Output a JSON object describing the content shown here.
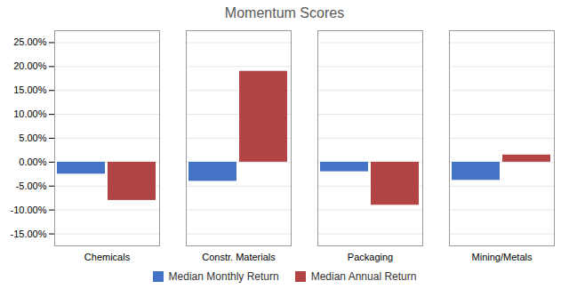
{
  "chart_data": {
    "type": "bar",
    "title": "Momentum Scores",
    "categories": [
      "Chemicals",
      "Constr. Materials",
      "Packaging",
      "Mining/Metals"
    ],
    "series": [
      {
        "name": "Median Monthly Return",
        "color": "#4472C4",
        "values": [
          -0.025,
          -0.04,
          -0.02,
          -0.038
        ]
      },
      {
        "name": "Median Annual Return",
        "color": "#B24444",
        "values": [
          -0.08,
          0.19,
          -0.09,
          0.015
        ]
      }
    ],
    "ylim": [
      -0.175,
      0.275
    ],
    "yticks": [
      {
        "value": -0.15,
        "label": "-15.00%"
      },
      {
        "value": -0.1,
        "label": "-10.00%"
      },
      {
        "value": -0.05,
        "label": "-5.00%"
      },
      {
        "value": 0.0,
        "label": "0.00%"
      },
      {
        "value": 0.05,
        "label": "5.00%"
      },
      {
        "value": 0.1,
        "label": "10.00%"
      },
      {
        "value": 0.15,
        "label": "15.00%"
      },
      {
        "value": 0.2,
        "label": "20.00%"
      },
      {
        "value": 0.25,
        "label": "25.00%"
      }
    ],
    "grid": true,
    "legend": "bottom"
  }
}
